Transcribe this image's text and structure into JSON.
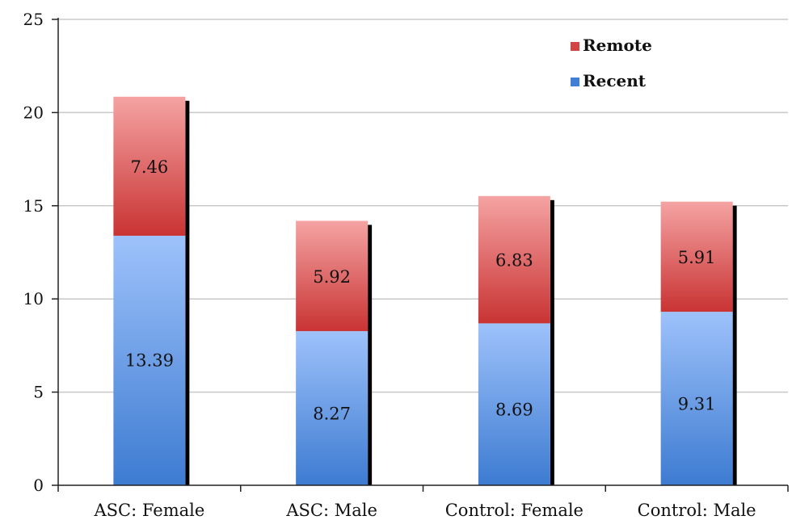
{
  "colors": {
    "remote_top": "#f5a3a3",
    "remote_bottom": "#c93333",
    "recent_top": "#9ec2fb",
    "recent_bottom": "#3d7bd1",
    "gridline": "#c8c8c8",
    "axis": "#222222",
    "shadow": "#000000",
    "remote_legend": "#d24545",
    "recent_legend": "#3f7fd6"
  },
  "chart_data": {
    "type": "bar",
    "stacked": true,
    "categories": [
      "ASC: Female",
      "ASC: Male",
      "Control: Female",
      "Control: Male"
    ],
    "series": [
      {
        "name": "Recent",
        "values": [
          13.39,
          8.27,
          8.69,
          9.31
        ],
        "labels": [
          "13.39",
          "8.27",
          "8.69",
          "9.31"
        ]
      },
      {
        "name": "Remote",
        "values": [
          7.46,
          5.92,
          6.83,
          5.91
        ],
        "labels": [
          "7.46",
          "5.92",
          "6.83",
          "5.91"
        ]
      }
    ],
    "ylim": [
      0,
      25
    ],
    "yticks": [
      0,
      5,
      10,
      15,
      20,
      25
    ],
    "ytick_labels": [
      "0",
      "5",
      "10",
      "15",
      "20",
      "25"
    ],
    "title": "",
    "xlabel": "",
    "ylabel": "",
    "grid": true,
    "legend_position": "top-right",
    "legend_order": [
      "Remote",
      "Recent"
    ]
  }
}
